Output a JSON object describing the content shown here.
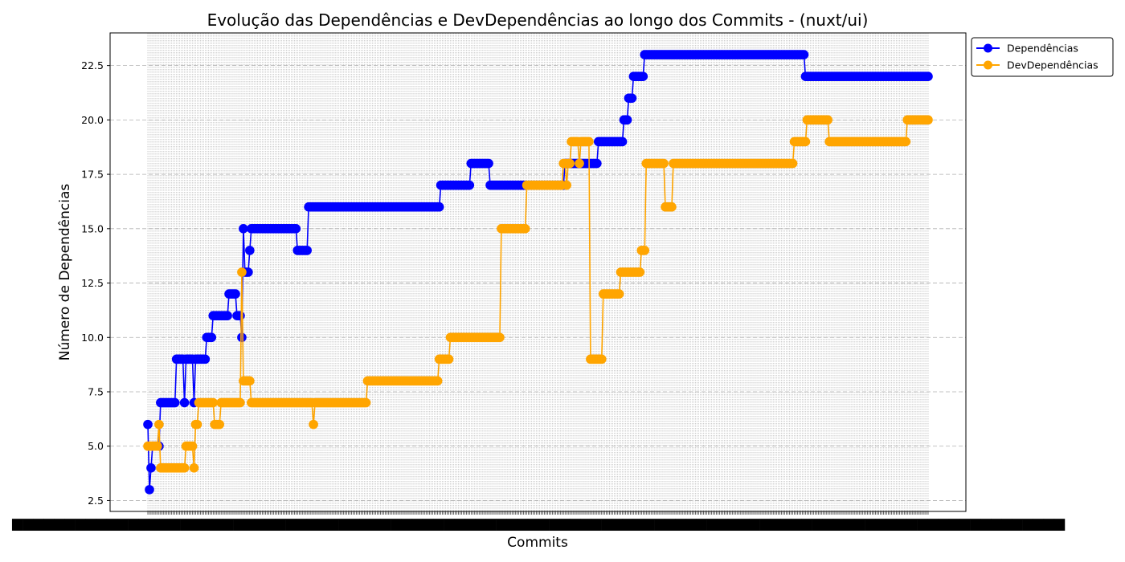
{
  "chart_data": {
    "type": "line",
    "title": "Evolução das Dependências e DevDependências ao longo dos Commits - (nuxt/ui)",
    "xlabel": "Commits",
    "ylabel": "Número de Dependências",
    "ylim": [
      2.0,
      24.0
    ],
    "yticks": [
      "2.5",
      "5.0",
      "7.5",
      "10.0",
      "12.5",
      "15.0",
      "17.5",
      "20.0",
      "22.5"
    ],
    "grid": "y dashed, x dotted",
    "legend_position": "outside top-right",
    "x_tick_labels_note": "commit dates, overlapping and illegible",
    "num_commits": 491,
    "series": [
      {
        "name": "Dependências",
        "color": "#0000ff",
        "segments": [
          [
            0,
            6
          ],
          [
            1,
            3
          ],
          [
            2,
            4
          ],
          [
            3,
            5
          ],
          [
            8,
            7
          ],
          [
            18,
            9
          ],
          [
            23,
            7
          ],
          [
            24,
            9
          ],
          [
            29,
            7
          ],
          [
            30,
            9
          ],
          [
            37,
            10
          ],
          [
            41,
            11
          ],
          [
            51,
            12
          ],
          [
            56,
            11
          ],
          [
            59,
            10
          ],
          [
            60,
            15
          ],
          [
            61,
            13
          ],
          [
            64,
            14
          ],
          [
            65,
            15
          ],
          [
            94,
            14
          ],
          [
            101,
            16
          ],
          [
            184,
            17
          ],
          [
            203,
            18
          ],
          [
            215,
            17
          ],
          [
            262,
            18
          ],
          [
            283,
            19
          ],
          [
            299,
            20
          ],
          [
            302,
            21
          ],
          [
            305,
            22
          ],
          [
            312,
            23
          ],
          [
            413,
            22
          ]
        ]
      },
      {
        "name": "DevDependências",
        "color": "#ffa500",
        "segments": [
          [
            0,
            5
          ],
          [
            7,
            6
          ],
          [
            8,
            4
          ],
          [
            24,
            5
          ],
          [
            29,
            4
          ],
          [
            30,
            6
          ],
          [
            32,
            7
          ],
          [
            42,
            6
          ],
          [
            46,
            7
          ],
          [
            59,
            13
          ],
          [
            60,
            8
          ],
          [
            65,
            7
          ],
          [
            104,
            6
          ],
          [
            105,
            7
          ],
          [
            138,
            8
          ],
          [
            183,
            9
          ],
          [
            190,
            10
          ],
          [
            222,
            15
          ],
          [
            238,
            17
          ],
          [
            261,
            18
          ],
          [
            263,
            17
          ],
          [
            264,
            18
          ],
          [
            266,
            19
          ],
          [
            271,
            18
          ],
          [
            272,
            19
          ],
          [
            278,
            9
          ],
          [
            286,
            12
          ],
          [
            297,
            13
          ],
          [
            310,
            14
          ],
          [
            313,
            18
          ],
          [
            325,
            16
          ],
          [
            330,
            18
          ],
          [
            406,
            19
          ],
          [
            414,
            20
          ],
          [
            428,
            19
          ],
          [
            477,
            20
          ]
        ]
      }
    ]
  }
}
